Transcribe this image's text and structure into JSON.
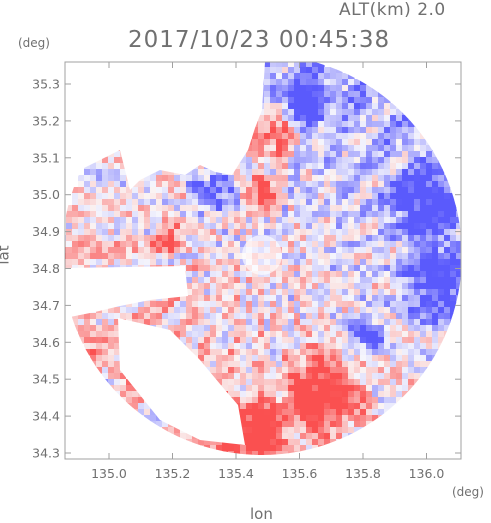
{
  "header": {
    "altitude_label": "ALT(km)  2.0",
    "timestamp": "2017/10/23 00:45:38"
  },
  "axes": {
    "y_unit": "(deg)",
    "x_unit": "(deg)",
    "y_title": "lat",
    "x_title": "lon",
    "y_ticks": [
      "35.3",
      "35.2",
      "35.1",
      "35.0",
      "34.9",
      "34.8",
      "34.7",
      "34.6",
      "34.5",
      "34.4",
      "34.3"
    ],
    "x_ticks": [
      "135.0",
      "135.2",
      "135.4",
      "135.6",
      "135.8",
      "136.0"
    ]
  },
  "colors": {
    "frame": "#a0a0a0",
    "positive": "#f05a5a",
    "negative": "#5a5af0",
    "neutral": "#f0f0ff"
  }
}
